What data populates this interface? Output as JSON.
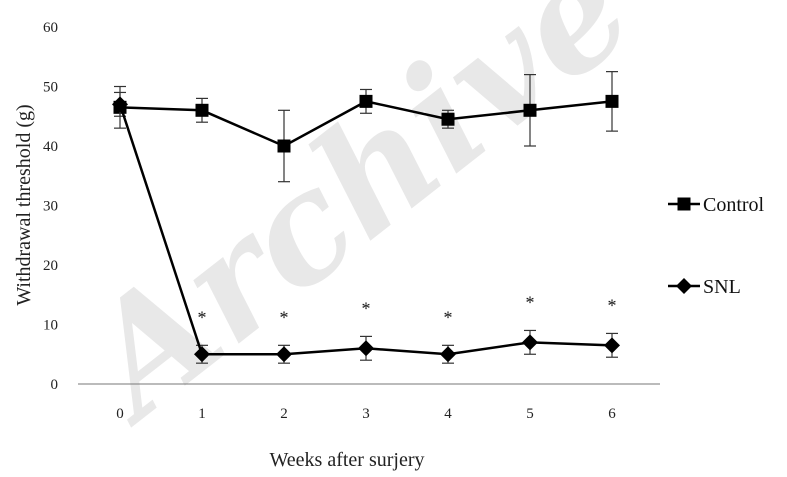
{
  "chart_data": {
    "type": "line",
    "title": "",
    "xlabel": "Weeks after surjery",
    "ylabel": "Withdrawal threshold (g)",
    "watermark": "Archive",
    "categories": [
      "0",
      "1",
      "2",
      "3",
      "4",
      "5",
      "6"
    ],
    "ylim": [
      0,
      60
    ],
    "yticks": [
      0,
      10,
      20,
      30,
      40,
      50,
      60
    ],
    "grid": false,
    "legend_position": "right",
    "series": [
      {
        "name": "Control",
        "marker": "square",
        "values": [
          46.5,
          46,
          40,
          47.5,
          44.5,
          46,
          47.5
        ],
        "errors": [
          3.5,
          2,
          6,
          2,
          1.5,
          6,
          5
        ]
      },
      {
        "name": "SNL",
        "marker": "diamond",
        "values": [
          47,
          5,
          5,
          6,
          5,
          7,
          6.5
        ],
        "errors": [
          2,
          1.5,
          1.5,
          2,
          1.5,
          2,
          2
        ]
      }
    ],
    "annotations": {
      "symbol": "*",
      "categories": [
        "1",
        "2",
        "3",
        "4",
        "5",
        "6"
      ]
    }
  }
}
